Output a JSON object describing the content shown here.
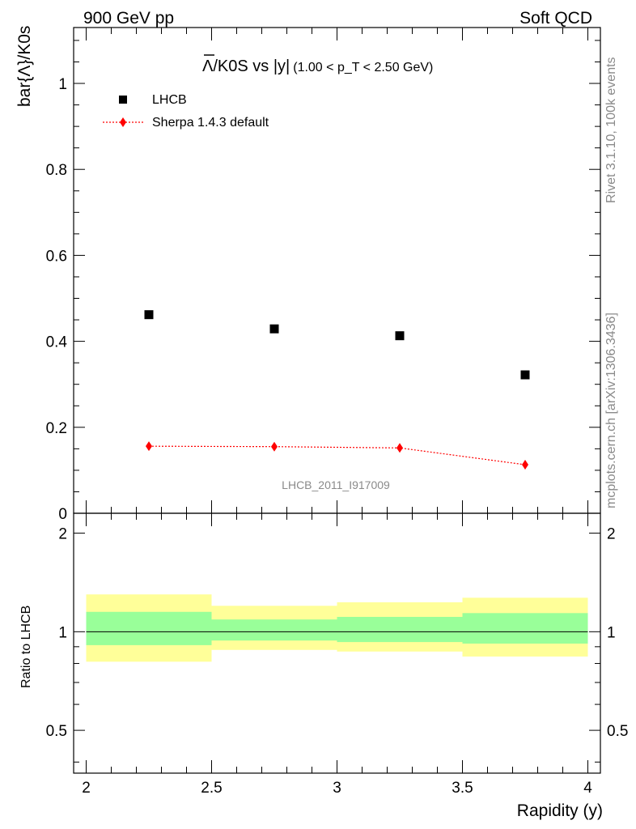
{
  "header": {
    "left": "900 GeV pp",
    "right": "Soft QCD"
  },
  "side_labels": {
    "rivet": "Rivet 3.1.10,  100k events",
    "source": "mcplots.cern.ch [arXiv:1306.3436]"
  },
  "chart_data": [
    {
      "type": "scatter",
      "title_main": "Λ/K0S vs |y|",
      "title_cut": "(1.00 < p_T < 2.50 GeV)",
      "ylabel": "bar{Λ}/K0s",
      "watermark": "LHCB_2011_I917009",
      "xlim": [
        1.95,
        4.05
      ],
      "ylim": [
        0,
        1.13
      ],
      "yticks": [
        "1",
        "0.8",
        "0.6",
        "0.4",
        "0.2",
        "0"
      ],
      "legend_position": "top-left",
      "grid": false,
      "series": [
        {
          "name": "LHCB",
          "color": "#000000",
          "marker": "square",
          "x": [
            2.25,
            2.75,
            3.25,
            3.75
          ],
          "y": [
            0.462,
            0.429,
            0.413,
            0.322
          ]
        },
        {
          "name": "Sherpa 1.4.3 default",
          "color": "#ff0000",
          "marker": "diamond",
          "line": "dotted",
          "x": [
            2.25,
            2.75,
            3.25,
            3.75
          ],
          "y": [
            0.156,
            0.155,
            0.152,
            0.113
          ],
          "yerr": [
            0.003,
            0.003,
            0.005,
            0.01
          ]
        }
      ]
    },
    {
      "type": "area",
      "ylabel": "Ratio to LHCB",
      "xlabel": "Rapidity (y)",
      "xlim": [
        1.95,
        4.05
      ],
      "xticks": [
        "2",
        "2.5",
        "3",
        "3.5",
        "4"
      ],
      "ylim": [
        0.37,
        2.3
      ],
      "yticks": [
        "2",
        "1",
        "0.5"
      ],
      "reference_line": 1.0,
      "bins": [
        {
          "low": 2.0,
          "high": 2.5,
          "stat": [
            0.91,
            1.15
          ],
          "total": [
            0.81,
            1.3
          ]
        },
        {
          "low": 2.5,
          "high": 3.0,
          "stat": [
            0.94,
            1.09
          ],
          "total": [
            0.88,
            1.2
          ]
        },
        {
          "low": 3.0,
          "high": 3.5,
          "stat": [
            0.93,
            1.11
          ],
          "total": [
            0.87,
            1.23
          ]
        },
        {
          "low": 3.5,
          "high": 4.0,
          "stat": [
            0.92,
            1.14
          ],
          "total": [
            0.84,
            1.27
          ]
        }
      ],
      "band_colors": {
        "stat": "#99ff99",
        "total": "#ffff99"
      }
    }
  ]
}
